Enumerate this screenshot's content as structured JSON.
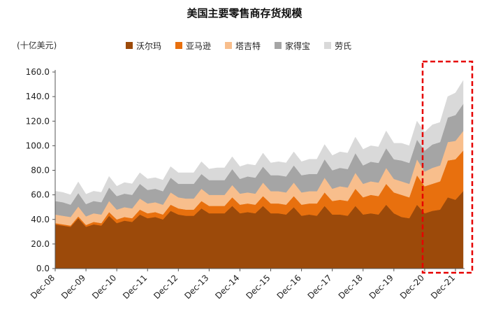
{
  "chart_data": {
    "type": "area",
    "title": "美国主要零售商存货规模",
    "unit_label": "(十亿美元)",
    "ylim": [
      0,
      160
    ],
    "y_ticks": [
      "0.0",
      "20.0",
      "40.0",
      "60.0",
      "80.0",
      "100.0",
      "120.0",
      "140.0",
      "160.0"
    ],
    "x_ticks": [
      "Dec-08",
      "Dec-09",
      "Dec-10",
      "Dec-11",
      "Dec-12",
      "Dec-13",
      "Dec-14",
      "Dec-15",
      "Dec-16",
      "Dec-17",
      "Dec-18",
      "Dec-19",
      "Dec-20",
      "Dec-21"
    ],
    "stacked": true,
    "grid": false,
    "legend_position": "top",
    "highlight": {
      "from": "Dec-20",
      "to": "Dec-21",
      "style": "red-dashed-box"
    },
    "series": [
      {
        "name": "沃尔玛",
        "color": "#9C4A0A",
        "values": [
          36,
          35,
          34,
          41,
          34,
          36,
          35,
          43,
          37,
          39,
          38,
          44,
          41,
          42,
          40,
          47,
          44,
          43,
          43,
          49,
          45,
          45,
          45,
          51,
          45,
          46,
          45,
          51,
          45,
          45,
          44,
          50,
          43,
          44,
          43,
          51,
          44,
          44,
          43,
          51,
          44,
          45,
          44,
          52,
          45,
          42,
          41,
          52,
          45,
          47,
          48,
          58,
          56,
          63
        ]
      },
      {
        "name": "亚马逊",
        "color": "#E8700E",
        "values": [
          1,
          1,
          1,
          1.5,
          1.5,
          2,
          2,
          3,
          3,
          3,
          3,
          4,
          4,
          4,
          4,
          5,
          5,
          5,
          5,
          6,
          6,
          6,
          6,
          7,
          7,
          7,
          7,
          8,
          8,
          8,
          8,
          9,
          9,
          9,
          10,
          11,
          11,
          12,
          12,
          14,
          14,
          15,
          15,
          17,
          17,
          18,
          17,
          24,
          22,
          22,
          23,
          30,
          33,
          33
        ]
      },
      {
        "name": "塔吉特",
        "color": "#F8BE8C",
        "values": [
          7,
          7,
          7,
          8,
          7,
          7,
          7,
          9,
          8,
          8,
          8,
          9,
          8,
          8,
          8,
          10,
          9,
          9,
          9,
          10,
          9,
          9,
          9,
          10,
          9,
          9,
          9,
          11,
          10,
          10,
          10,
          11,
          10,
          10,
          10,
          12,
          10,
          11,
          11,
          13,
          11,
          11,
          11,
          13,
          11,
          11,
          11,
          13,
          12,
          13,
          13,
          15,
          15,
          16
        ]
      },
      {
        "name": "家得宝",
        "color": "#A5A5A5",
        "values": [
          11,
          11,
          10,
          11,
          10,
          10,
          10,
          11,
          11,
          11,
          11,
          12,
          11,
          11,
          11,
          12,
          11,
          12,
          12,
          12,
          12,
          12,
          12,
          13,
          12,
          13,
          13,
          13,
          13,
          13,
          13,
          14,
          14,
          14,
          14,
          15,
          15,
          15,
          15,
          16,
          15,
          16,
          16,
          16,
          16,
          17,
          17,
          16,
          17,
          19,
          19,
          20,
          21,
          22
        ]
      },
      {
        "name": "劳氏",
        "color": "#D9D9D9",
        "values": [
          8,
          8,
          8,
          9,
          8,
          8,
          8,
          9,
          8,
          9,
          9,
          9,
          9,
          9,
          9,
          9,
          9,
          9,
          9,
          10,
          9,
          10,
          10,
          10,
          10,
          10,
          10,
          11,
          10,
          11,
          11,
          11,
          11,
          12,
          12,
          12,
          12,
          13,
          13,
          13,
          13,
          13,
          13,
          14,
          13,
          14,
          14,
          15,
          15,
          16,
          16,
          17,
          18,
          19
        ]
      }
    ]
  }
}
